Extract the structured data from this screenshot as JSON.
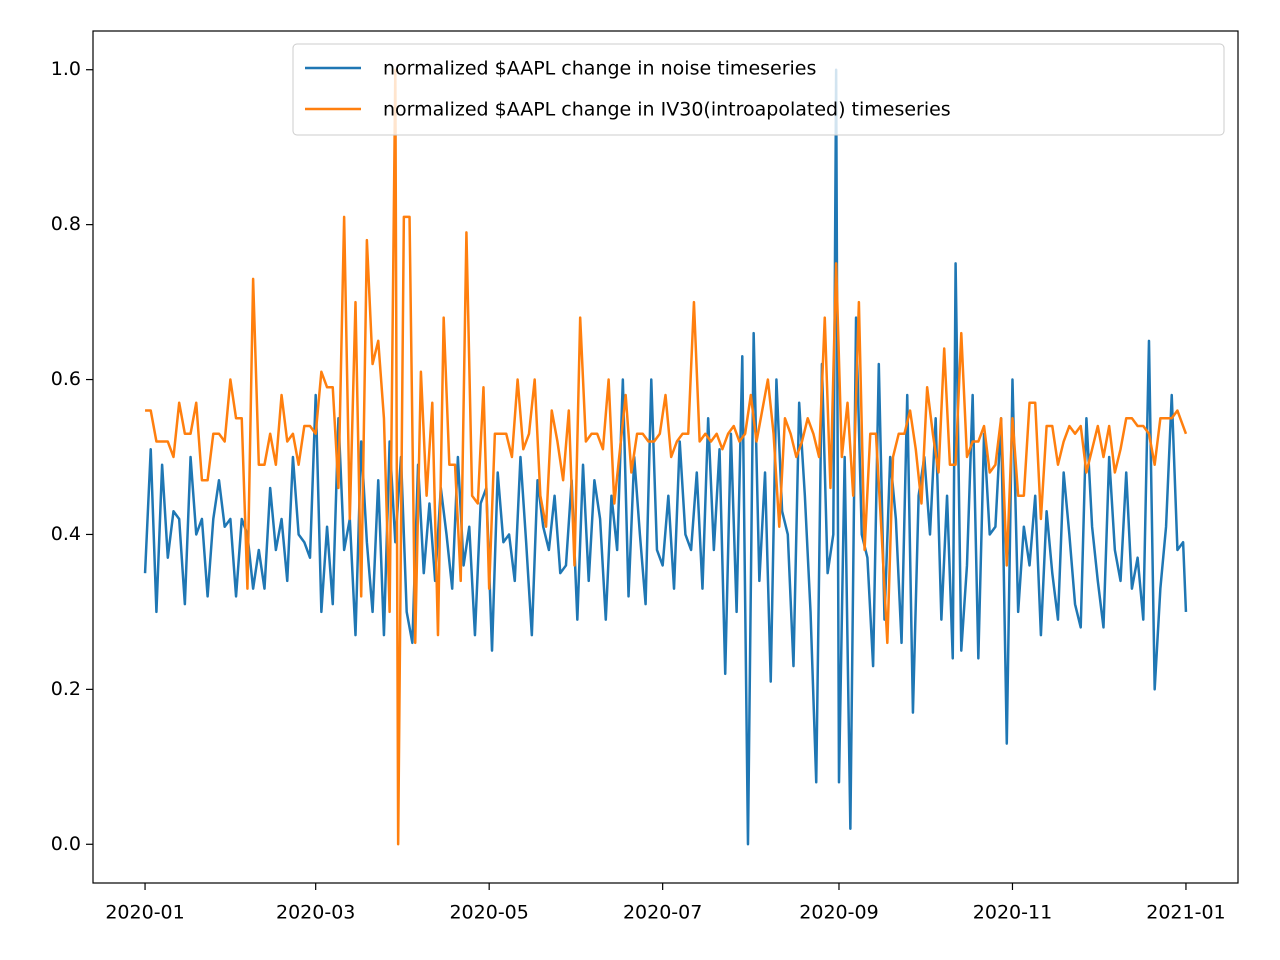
{
  "chart_data": {
    "type": "line",
    "xlim": [
      -18.3,
      384.3
    ],
    "xticks": [
      {
        "value": 0,
        "label": "2020-01"
      },
      {
        "value": 60,
        "label": "2020-03"
      },
      {
        "value": 121,
        "label": "2020-05"
      },
      {
        "value": 182,
        "label": "2020-07"
      },
      {
        "value": 244,
        "label": "2020-09"
      },
      {
        "value": 305,
        "label": "2020-11"
      },
      {
        "value": 366,
        "label": "2021-01"
      }
    ],
    "ylim": [
      -0.05,
      1.05
    ],
    "yticks": [
      {
        "value": 0,
        "label": "0.0"
      },
      {
        "value": 0.2,
        "label": "0.2"
      },
      {
        "value": 0.4,
        "label": "0.4"
      },
      {
        "value": 0.6,
        "label": "0.6"
      },
      {
        "value": 0.8,
        "label": "0.8"
      },
      {
        "value": 1,
        "label": "1.0"
      }
    ],
    "legend": "upper right",
    "series": [
      {
        "name": "normalized $AAPL change in noise timeseries",
        "color": "#1f77b4",
        "x": [
          0,
          2,
          4,
          6,
          8,
          10,
          12,
          14,
          16,
          18,
          20,
          22,
          24,
          26,
          28,
          30,
          32,
          34,
          36,
          38,
          40,
          42,
          44,
          46,
          48,
          50,
          52,
          54,
          56,
          58,
          60,
          62,
          64,
          66,
          68,
          70,
          72,
          74,
          76,
          78,
          80,
          82,
          84,
          86,
          88,
          90,
          92,
          94,
          96,
          98,
          100,
          102,
          104,
          106,
          108,
          110,
          112,
          114,
          116,
          118,
          120,
          122,
          124,
          126,
          128,
          130,
          132,
          134,
          136,
          138,
          140,
          142,
          144,
          146,
          148,
          150,
          152,
          154,
          156,
          158,
          160,
          162,
          164,
          166,
          168,
          170,
          172,
          174,
          176,
          178,
          180,
          182,
          184,
          186,
          188,
          190,
          192,
          194,
          196,
          198,
          200,
          202,
          204,
          206,
          208,
          210,
          212,
          214,
          216,
          218,
          220,
          222,
          224,
          226,
          228,
          230,
          232,
          234,
          236,
          238,
          240,
          242,
          243,
          244,
          246,
          248,
          250,
          252,
          254,
          256,
          258,
          260,
          262,
          264,
          266,
          268,
          270,
          272,
          274,
          276,
          278,
          280,
          282,
          284,
          285,
          287,
          289,
          291,
          293,
          295,
          297,
          299,
          301,
          303,
          305,
          307,
          309,
          311,
          313,
          315,
          317,
          319,
          321,
          323,
          325,
          327,
          329,
          331,
          333,
          335,
          337,
          339,
          341,
          343,
          345,
          347,
          349,
          351,
          353,
          355,
          357,
          359,
          361,
          363,
          365,
          366
        ],
        "values": [
          0.35,
          0.51,
          0.3,
          0.49,
          0.37,
          0.43,
          0.42,
          0.31,
          0.5,
          0.4,
          0.42,
          0.32,
          0.42,
          0.47,
          0.41,
          0.42,
          0.32,
          0.42,
          0.4,
          0.33,
          0.38,
          0.33,
          0.46,
          0.38,
          0.42,
          0.34,
          0.5,
          0.4,
          0.39,
          0.37,
          0.58,
          0.3,
          0.41,
          0.31,
          0.55,
          0.38,
          0.42,
          0.27,
          0.52,
          0.39,
          0.3,
          0.47,
          0.27,
          0.52,
          0.39,
          0.5,
          0.3,
          0.26,
          0.49,
          0.35,
          0.44,
          0.34,
          0.46,
          0.4,
          0.33,
          0.5,
          0.36,
          0.41,
          0.27,
          0.44,
          0.46,
          0.25,
          0.48,
          0.39,
          0.4,
          0.34,
          0.5,
          0.39,
          0.27,
          0.47,
          0.41,
          0.38,
          0.45,
          0.35,
          0.36,
          0.47,
          0.29,
          0.49,
          0.34,
          0.47,
          0.42,
          0.29,
          0.45,
          0.38,
          0.6,
          0.32,
          0.5,
          0.4,
          0.31,
          0.6,
          0.38,
          0.36,
          0.45,
          0.33,
          0.52,
          0.4,
          0.38,
          0.48,
          0.33,
          0.55,
          0.38,
          0.51,
          0.22,
          0.53,
          0.3,
          0.63,
          0.0,
          0.66,
          0.34,
          0.48,
          0.21,
          0.6,
          0.43,
          0.4,
          0.23,
          0.57,
          0.45,
          0.3,
          0.08,
          0.62,
          0.35,
          0.4,
          1.0,
          0.08,
          0.5,
          0.02,
          0.68,
          0.4,
          0.37,
          0.23,
          0.62,
          0.29,
          0.5,
          0.42,
          0.26,
          0.58,
          0.17,
          0.45,
          0.5,
          0.4,
          0.55,
          0.29,
          0.45,
          0.24,
          0.75,
          0.25,
          0.36,
          0.58,
          0.24,
          0.53,
          0.4,
          0.41,
          0.55,
          0.13,
          0.6,
          0.3,
          0.41,
          0.36,
          0.45,
          0.27,
          0.43,
          0.35,
          0.29,
          0.48,
          0.4,
          0.31,
          0.28,
          0.55,
          0.41,
          0.34,
          0.28,
          0.5,
          0.38,
          0.34,
          0.48,
          0.33,
          0.37,
          0.29,
          0.65,
          0.2,
          0.33,
          0.41,
          0.58,
          0.38,
          0.39,
          0.3
        ]
      },
      {
        "name": "normalized $AAPL change in IV30(introapolated) timeseries",
        "color": "#ff7f0e",
        "x": [
          0,
          2,
          4,
          6,
          8,
          10,
          12,
          14,
          16,
          18,
          20,
          22,
          24,
          26,
          28,
          30,
          32,
          34,
          36,
          38,
          40,
          42,
          44,
          46,
          48,
          50,
          52,
          54,
          56,
          58,
          60,
          62,
          64,
          66,
          68,
          70,
          72,
          74,
          76,
          78,
          80,
          82,
          84,
          86,
          88,
          89,
          91,
          93,
          95,
          97,
          99,
          101,
          103,
          105,
          107,
          109,
          111,
          113,
          115,
          117,
          119,
          121,
          123,
          125,
          127,
          129,
          131,
          133,
          135,
          137,
          139,
          141,
          143,
          145,
          147,
          149,
          151,
          153,
          155,
          157,
          159,
          161,
          163,
          165,
          167,
          169,
          171,
          173,
          175,
          177,
          179,
          181,
          183,
          185,
          187,
          189,
          191,
          193,
          195,
          197,
          199,
          201,
          203,
          205,
          207,
          209,
          211,
          213,
          215,
          217,
          219,
          221,
          223,
          225,
          227,
          229,
          231,
          233,
          235,
          237,
          239,
          241,
          243,
          245,
          247,
          249,
          251,
          253,
          255,
          257,
          259,
          261,
          263,
          265,
          267,
          269,
          271,
          273,
          275,
          277,
          279,
          281,
          283,
          285,
          287,
          289,
          291,
          293,
          295,
          297,
          299,
          301,
          303,
          305,
          307,
          309,
          311,
          313,
          315,
          317,
          319,
          321,
          323,
          325,
          327,
          329,
          331,
          333,
          335,
          337,
          339,
          341,
          343,
          345,
          347,
          349,
          351,
          353,
          355,
          357,
          359,
          361,
          363,
          366
        ],
        "values": [
          0.56,
          0.56,
          0.52,
          0.52,
          0.52,
          0.5,
          0.57,
          0.53,
          0.53,
          0.57,
          0.47,
          0.47,
          0.53,
          0.53,
          0.52,
          0.6,
          0.55,
          0.55,
          0.33,
          0.73,
          0.49,
          0.49,
          0.53,
          0.49,
          0.58,
          0.52,
          0.53,
          0.49,
          0.54,
          0.54,
          0.53,
          0.61,
          0.59,
          0.59,
          0.46,
          0.81,
          0.42,
          0.7,
          0.32,
          0.78,
          0.62,
          0.65,
          0.55,
          0.3,
          1.0,
          0.0,
          0.81,
          0.81,
          0.26,
          0.61,
          0.45,
          0.57,
          0.27,
          0.68,
          0.49,
          0.49,
          0.34,
          0.79,
          0.45,
          0.44,
          0.59,
          0.33,
          0.53,
          0.53,
          0.53,
          0.5,
          0.6,
          0.51,
          0.53,
          0.6,
          0.45,
          0.41,
          0.56,
          0.52,
          0.47,
          0.56,
          0.36,
          0.68,
          0.52,
          0.53,
          0.53,
          0.51,
          0.6,
          0.44,
          0.51,
          0.58,
          0.48,
          0.53,
          0.53,
          0.52,
          0.52,
          0.53,
          0.58,
          0.5,
          0.52,
          0.53,
          0.53,
          0.7,
          0.52,
          0.53,
          0.52,
          0.53,
          0.51,
          0.53,
          0.54,
          0.52,
          0.53,
          0.58,
          0.52,
          0.56,
          0.6,
          0.53,
          0.41,
          0.55,
          0.53,
          0.5,
          0.52,
          0.55,
          0.53,
          0.5,
          0.68,
          0.46,
          0.75,
          0.5,
          0.57,
          0.45,
          0.7,
          0.38,
          0.53,
          0.53,
          0.4,
          0.26,
          0.5,
          0.53,
          0.53,
          0.56,
          0.51,
          0.44,
          0.59,
          0.53,
          0.48,
          0.64,
          0.49,
          0.49,
          0.66,
          0.5,
          0.52,
          0.52,
          0.54,
          0.48,
          0.49,
          0.55,
          0.36,
          0.55,
          0.45,
          0.45,
          0.57,
          0.57,
          0.42,
          0.54,
          0.54,
          0.49,
          0.52,
          0.54,
          0.53,
          0.54,
          0.48,
          0.51,
          0.54,
          0.5,
          0.54,
          0.48,
          0.51,
          0.55,
          0.55,
          0.54,
          0.54,
          0.53,
          0.49,
          0.55,
          0.55,
          0.55,
          0.56,
          0.53
        ]
      }
    ]
  }
}
